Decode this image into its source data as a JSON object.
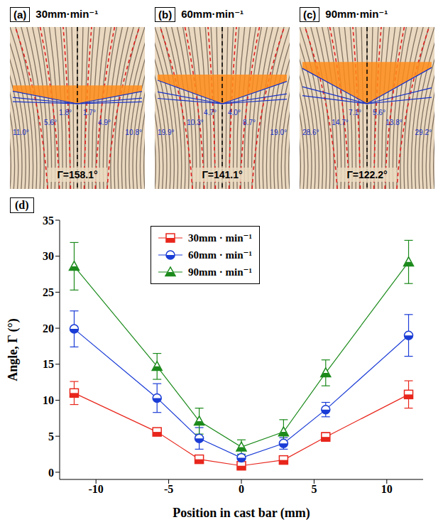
{
  "panels": [
    {
      "label": "(a)",
      "title": "30mm·min⁻¹",
      "angle_labels": [
        "11.0°",
        "5.6°",
        "1.8°",
        "1.7°",
        "4.9°",
        "10.8°"
      ],
      "gamma": "Γ=158.1°"
    },
    {
      "label": "(b)",
      "title": "60mm·min⁻¹",
      "angle_labels": [
        "19.9°",
        "10.3°",
        "4.7°",
        "4.0°",
        "8.7°",
        "19.0°"
      ],
      "gamma": "Γ=141.1°"
    },
    {
      "label": "(c)",
      "title": "90mm·min⁻¹",
      "angle_labels": [
        "28.6°",
        "14.7°",
        "7.1°",
        "5.6°",
        "13.8°",
        "29.2°"
      ],
      "gamma": "Γ=122.2°"
    }
  ],
  "chart_data": {
    "type": "line",
    "panel_label": "(d)",
    "x_label": "Position in cast bar (mm)",
    "y_label": "Angle, Γ (°)",
    "x": [
      -11.5,
      -5.8,
      -2.9,
      0,
      2.9,
      5.8,
      11.5
    ],
    "xlim": [
      -12.5,
      12.5
    ],
    "xticks": [
      -10,
      -5,
      0,
      5,
      10
    ],
    "ylim": [
      -1,
      35
    ],
    "yticks": [
      0,
      5,
      10,
      15,
      20,
      25,
      30,
      35
    ],
    "legend": "top",
    "series": [
      {
        "name": "30mm · min⁻¹",
        "color": "#e8261c",
        "marker": "square",
        "values": [
          11.0,
          5.6,
          1.8,
          0.9,
          1.7,
          4.9,
          10.8
        ],
        "errors": [
          1.6,
          0.4,
          0.3,
          0.3,
          0.3,
          0.6,
          1.9
        ]
      },
      {
        "name": "60mm · min⁻¹",
        "color": "#1a3cd6",
        "marker": "circle",
        "values": [
          19.9,
          10.3,
          4.7,
          2.0,
          4.0,
          8.7,
          19.0
        ],
        "errors": [
          2.5,
          2.0,
          1.5,
          0.5,
          0.8,
          1.0,
          2.9
        ]
      },
      {
        "name": "90mm · min⁻¹",
        "color": "#1b8a1b",
        "marker": "triangle",
        "values": [
          28.6,
          14.7,
          7.1,
          3.5,
          5.6,
          13.8,
          29.2
        ],
        "errors": [
          3.3,
          1.8,
          1.8,
          1.0,
          1.7,
          1.8,
          3.0
        ]
      }
    ]
  }
}
